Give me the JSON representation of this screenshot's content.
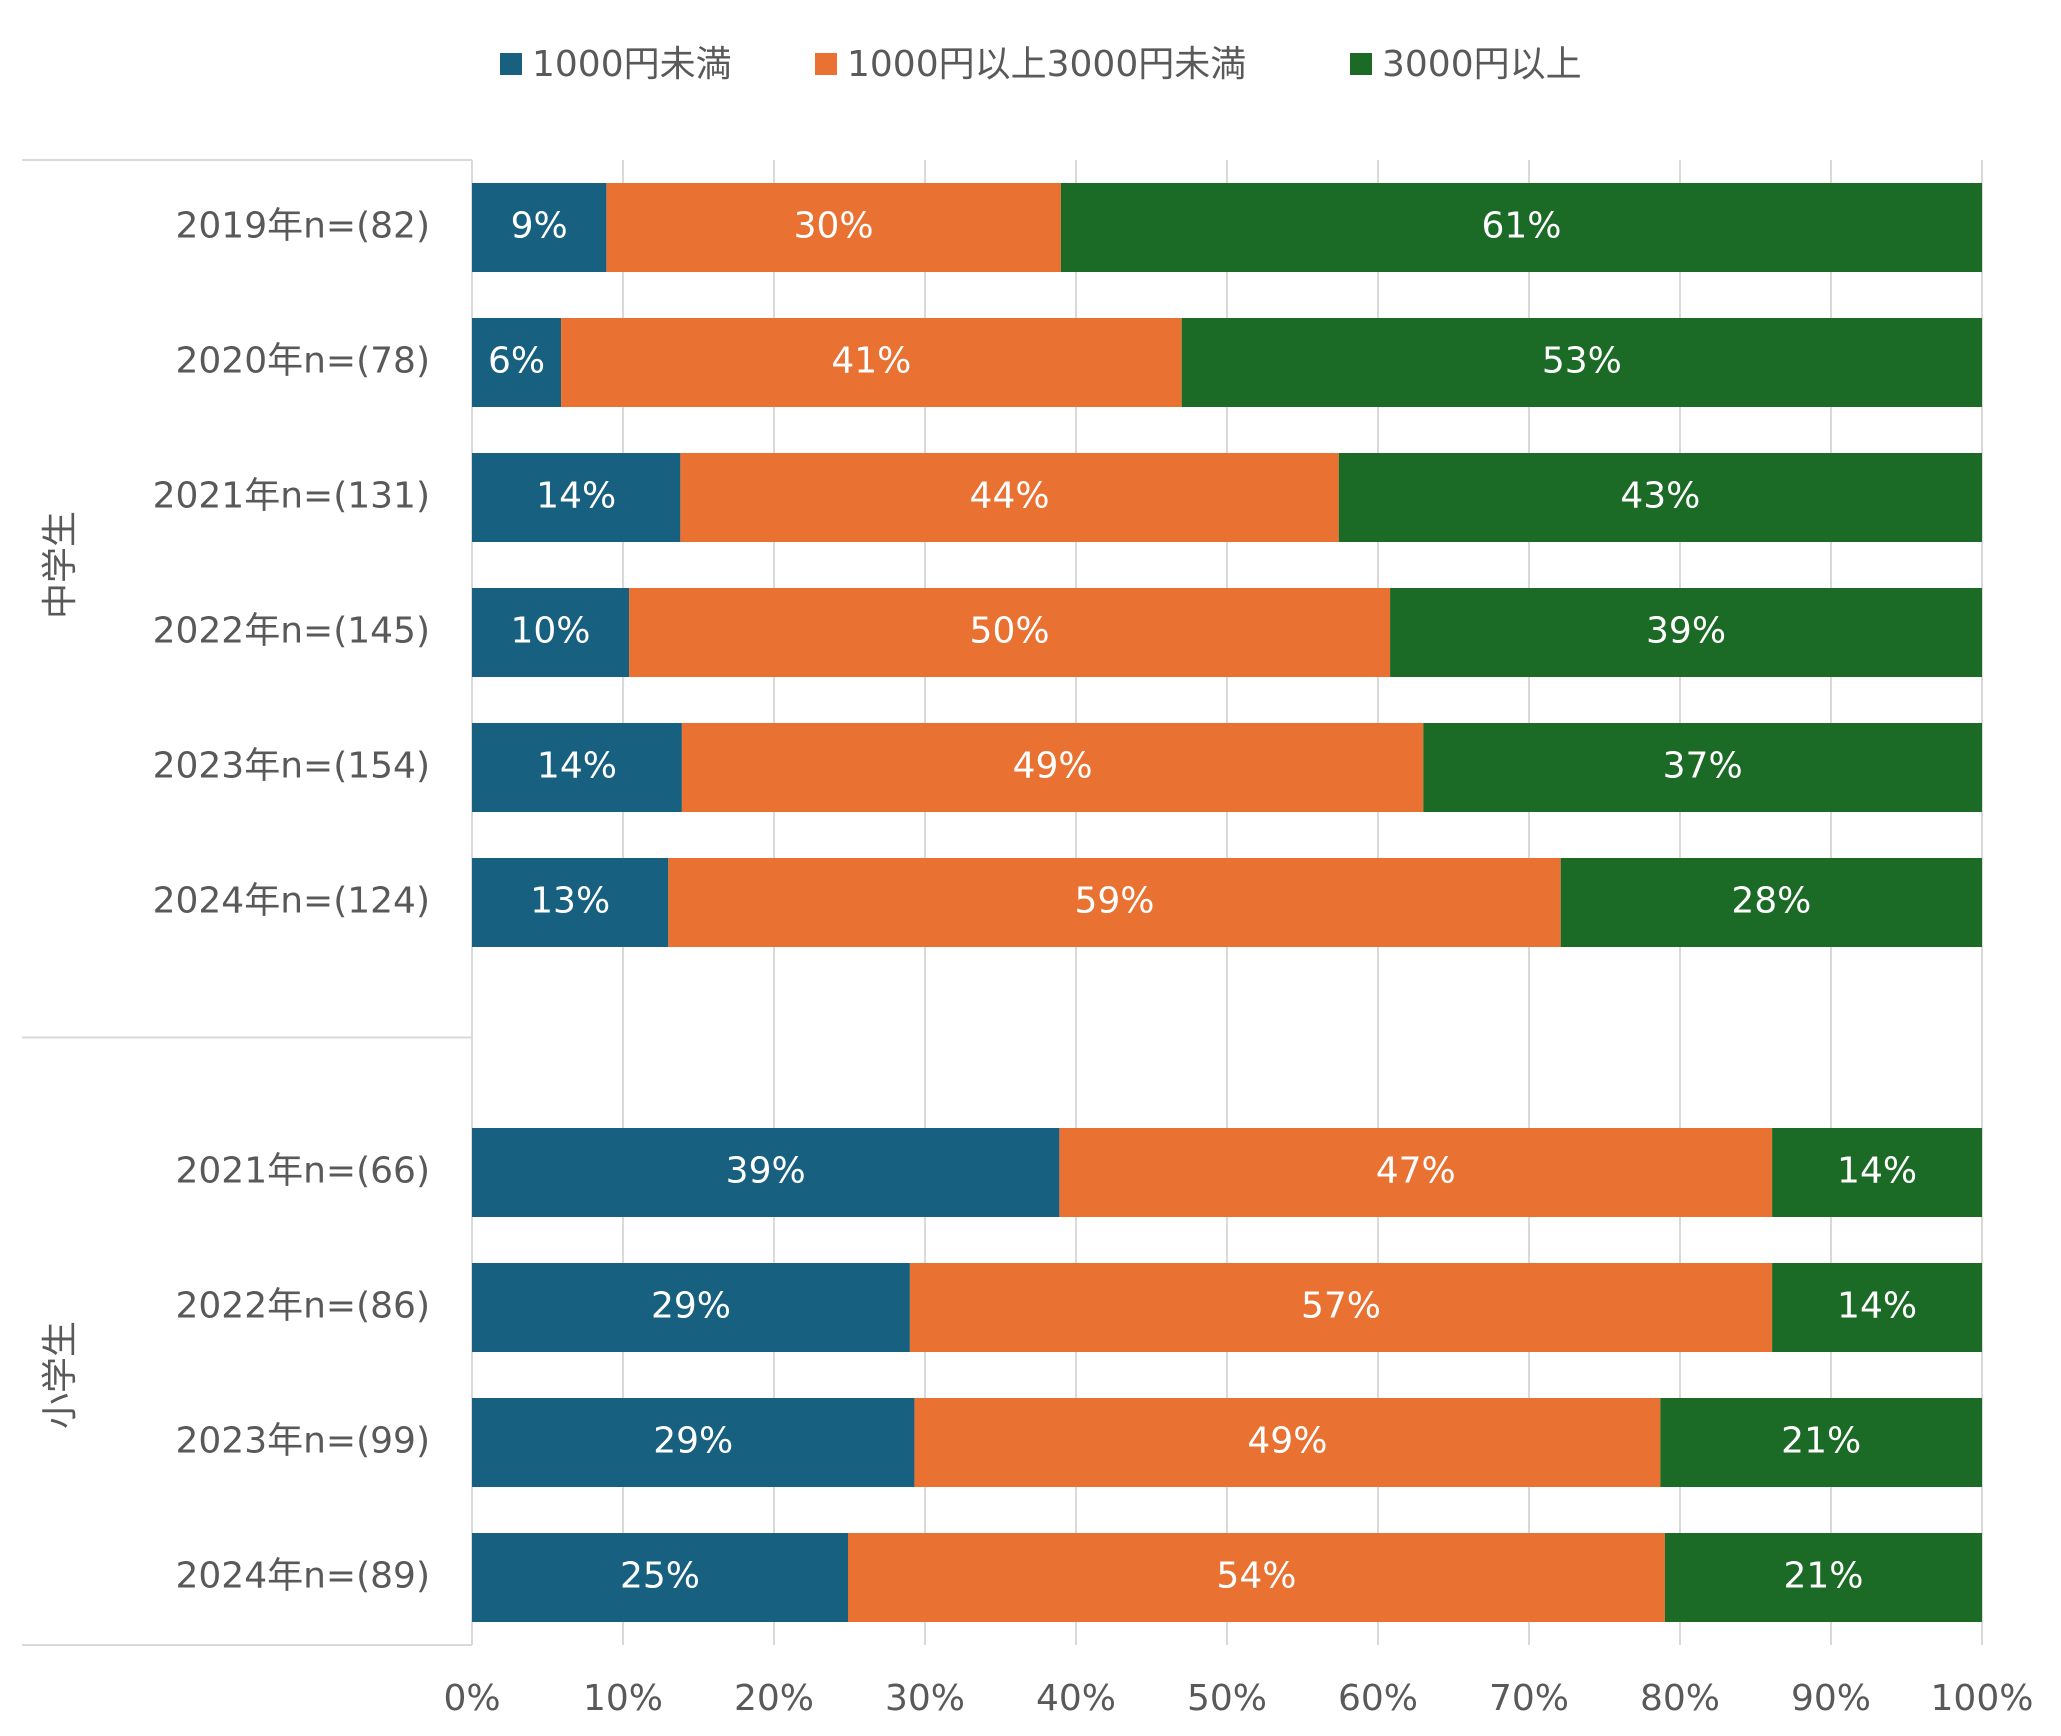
{
  "chart_data": {
    "type": "stacked_barh",
    "groups": [
      "中学生",
      "小学生"
    ],
    "categories": [
      "2019年n=(82)",
      "2020年n=(78)",
      "2021年n=(131)",
      "2022年n=(145)",
      "2023年n=(154)",
      "2024年n=(124)",
      null,
      "2021年n=(66)",
      "2022年n=(86)",
      "2023年n=(99)",
      "2024年n=(89)"
    ],
    "series": [
      {
        "name": "1000円未満",
        "color": "#17607f",
        "values": [
          8.9,
          5.9,
          13.8,
          10.4,
          13.9,
          13.0,
          null,
          38.9,
          29.0,
          29.3,
          24.9
        ],
        "value_labels": [
          "9%",
          "6%",
          "14%",
          "10%",
          "14%",
          "13%",
          null,
          "39%",
          "29%",
          "29%",
          "25%"
        ]
      },
      {
        "name": "1000円以上3000円未満",
        "color": "#e97132",
        "values": [
          30.1,
          41.1,
          43.6,
          50.4,
          49.1,
          59.1,
          null,
          47.2,
          57.1,
          49.4,
          54.1
        ],
        "value_labels": [
          "30%",
          "41%",
          "44%",
          "50%",
          "49%",
          "59%",
          null,
          "47%",
          "57%",
          "49%",
          "54%"
        ]
      },
      {
        "name": "3000円以上",
        "color": "#1b6b27",
        "values": [
          61.0,
          53.0,
          42.6,
          39.2,
          37.0,
          27.9,
          null,
          13.9,
          13.9,
          21.3,
          21.0
        ],
        "value_labels": [
          "61%",
          "53%",
          "43%",
          "39%",
          "37%",
          "28%",
          null,
          "14%",
          "14%",
          "21%",
          "21%"
        ]
      }
    ],
    "xlim": [
      0,
      100
    ],
    "xticks": [
      {
        "value": 0,
        "label": "0%"
      },
      {
        "value": 10,
        "label": "10%"
      },
      {
        "value": 20,
        "label": "20%"
      },
      {
        "value": 30,
        "label": "30%"
      },
      {
        "value": 40,
        "label": "40%"
      },
      {
        "value": 50,
        "label": "50%"
      },
      {
        "value": 60,
        "label": "60%"
      },
      {
        "value": 70,
        "label": "70%"
      },
      {
        "value": 80,
        "label": "80%"
      },
      {
        "value": 90,
        "label": "90%"
      },
      {
        "value": 100,
        "label": "100%"
      }
    ],
    "grid": true,
    "legend": "top"
  }
}
